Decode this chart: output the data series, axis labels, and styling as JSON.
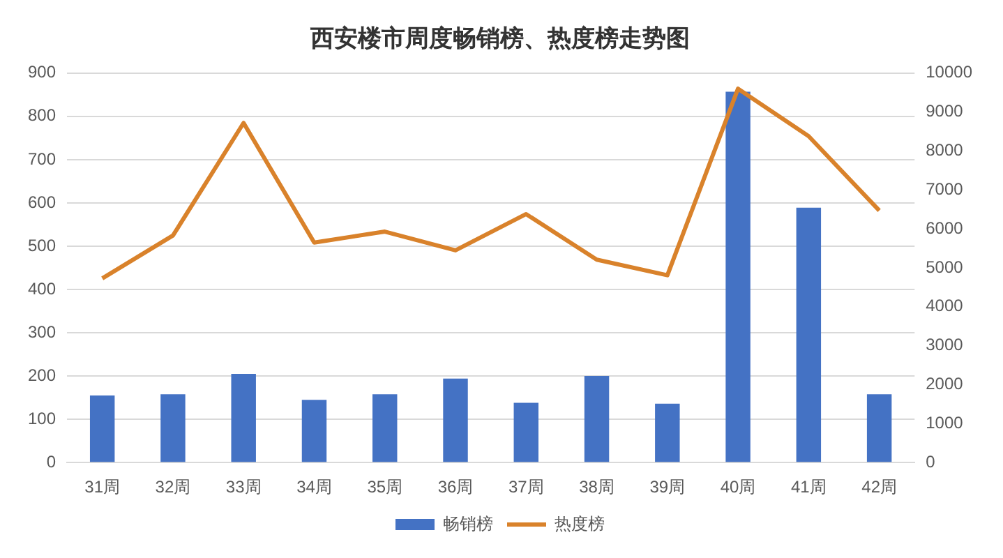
{
  "chart_data": {
    "type": "bar",
    "title": "西安楼市周度畅销榜、热度榜走势图",
    "categories": [
      "31周",
      "32周",
      "33周",
      "34周",
      "35周",
      "36周",
      "37周",
      "38周",
      "39周",
      "40周",
      "41周",
      "42周"
    ],
    "series": [
      {
        "name": "畅销榜",
        "color": "#4472c4",
        "values": [
          155,
          158,
          205,
          145,
          158,
          194,
          138,
          200,
          136,
          857,
          589,
          158
        ]
      },
      {
        "name": "热度榜",
        "type": "line",
        "axis": "y2",
        "color": "#d9822b",
        "values": [
          4730,
          5830,
          8720,
          5650,
          5930,
          5450,
          6380,
          5210,
          4810,
          9600,
          8380,
          6470
        ]
      }
    ],
    "ylim": [
      0,
      900
    ],
    "yticks": [
      0,
      100,
      200,
      300,
      400,
      500,
      600,
      700,
      800,
      900
    ],
    "y2lim": [
      0,
      10000
    ],
    "y2ticks": [
      0,
      1000,
      2000,
      3000,
      4000,
      5000,
      6000,
      7000,
      8000,
      9000,
      10000
    ],
    "grid": "y",
    "legend": "bottom",
    "marker": "none",
    "line_style": "solid"
  }
}
